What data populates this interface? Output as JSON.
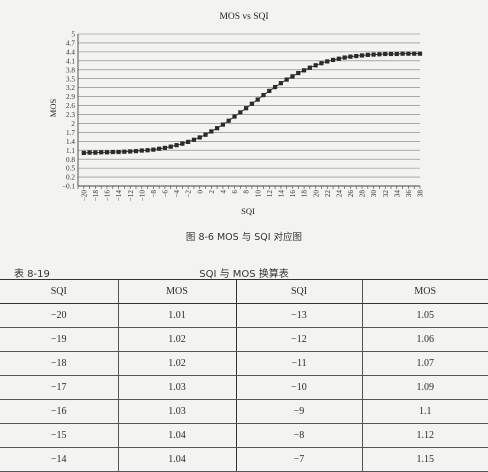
{
  "chart_data": {
    "type": "line",
    "title": "MOS vs SQI",
    "xlabel": "SQI",
    "ylabel": "MOS",
    "x_ticks": [
      -20,
      -18,
      -16,
      -14,
      -12,
      -10,
      -8,
      -6,
      -4,
      -2,
      0,
      2,
      4,
      6,
      8,
      10,
      12,
      14,
      16,
      18,
      20,
      22,
      24,
      26,
      28,
      30,
      32,
      34,
      36,
      38
    ],
    "y_ticks": [
      -0.1,
      0.2,
      0.5,
      0.8,
      1.1,
      1.4,
      1.7,
      2,
      2.3,
      2.6,
      2.9,
      3.2,
      3.5,
      3.8,
      4.1,
      4.4,
      4.7,
      5
    ],
    "xlim": [
      -21,
      38
    ],
    "ylim": [
      -0.1,
      5
    ],
    "grid": "horizontal",
    "marker": "square",
    "x": [
      -20,
      -19,
      -18,
      -17,
      -16,
      -15,
      -14,
      -13,
      -12,
      -11,
      -10,
      -9,
      -8,
      -7,
      -6,
      -5,
      -4,
      -3,
      -2,
      -1,
      0,
      1,
      2,
      3,
      4,
      5,
      6,
      7,
      8,
      9,
      10,
      11,
      12,
      13,
      14,
      15,
      16,
      17,
      18,
      19,
      20,
      21,
      22,
      23,
      24,
      25,
      26,
      27,
      28,
      29,
      30,
      31,
      32,
      33,
      34,
      35,
      36,
      37,
      38
    ],
    "values": [
      1.01,
      1.02,
      1.02,
      1.03,
      1.03,
      1.04,
      1.04,
      1.05,
      1.06,
      1.07,
      1.09,
      1.1,
      1.12,
      1.15,
      1.18,
      1.22,
      1.27,
      1.32,
      1.38,
      1.45,
      1.53,
      1.62,
      1.73,
      1.84,
      1.96,
      2.09,
      2.23,
      2.37,
      2.51,
      2.66,
      2.8,
      2.95,
      3.09,
      3.22,
      3.35,
      3.47,
      3.58,
      3.69,
      3.78,
      3.87,
      3.95,
      4.02,
      4.08,
      4.13,
      4.17,
      4.21,
      4.24,
      4.26,
      4.28,
      4.3,
      4.31,
      4.32,
      4.33,
      4.33,
      4.33,
      4.34,
      4.34,
      4.34,
      4.34
    ]
  },
  "figure_caption": "图 8-6   MOS 与 SQI 对应图",
  "table": {
    "number": "表 8-19",
    "title": "SQI 与 MOS 换算表",
    "headers": [
      "SQI",
      "MOS",
      "SQI",
      "MOS"
    ],
    "rows": [
      [
        "−20",
        "1.01",
        "−13",
        "1.05"
      ],
      [
        "−19",
        "1.02",
        "−12",
        "1.06"
      ],
      [
        "−18",
        "1.02",
        "−11",
        "1.07"
      ],
      [
        "−17",
        "1.03",
        "−10",
        "1.09"
      ],
      [
        "−16",
        "1.03",
        "−9",
        "1.1"
      ],
      [
        "−15",
        "1.04",
        "−8",
        "1.12"
      ],
      [
        "−14",
        "1.04",
        "−7",
        "1.15"
      ]
    ]
  }
}
